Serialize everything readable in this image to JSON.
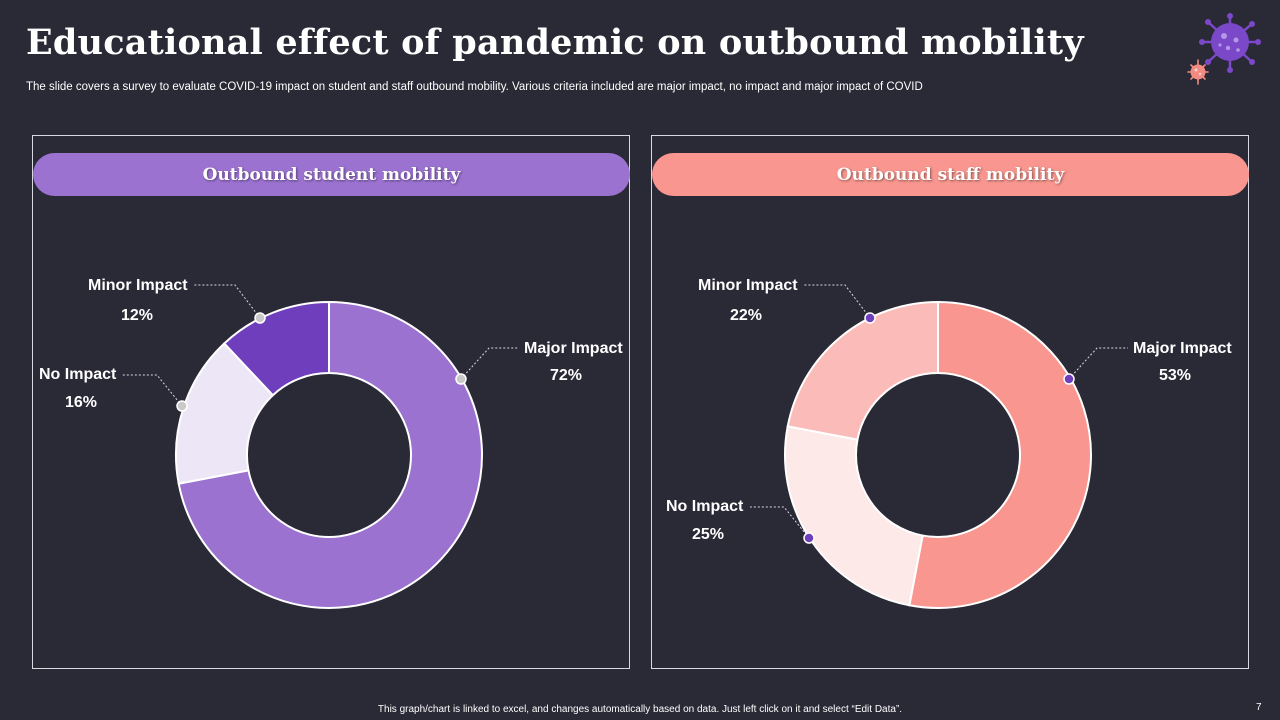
{
  "slide": {
    "title": "Educational effect of pandemic on outbound mobility",
    "subtitle": "The slide covers a survey to evaluate COVID-19 impact on student and staff outbound mobility. Various criteria included are major impact, no impact and major impact of COVID",
    "footer": "This graph/chart is linked to excel, and changes automatically based on data. Just left click on it and select “Edit Data”.",
    "page_number": "7",
    "icon": "virus-icon"
  },
  "colors": {
    "background": "#2a2936",
    "student_header": "#9b72d0",
    "staff_header": "#f8968f"
  },
  "chart_data": [
    {
      "type": "pie",
      "variant": "donut",
      "title": "Outbound student mobility",
      "categories": [
        "Major Impact",
        "No Impact",
        "Minor Impact"
      ],
      "values": [
        72,
        16,
        12
      ],
      "value_labels": [
        "72%",
        "16%",
        "12%"
      ],
      "colors": [
        "#9b72d0",
        "#ede6f6",
        "#6f3ebd"
      ],
      "marker_color": "#c9c9c9"
    },
    {
      "type": "pie",
      "variant": "donut",
      "title": "Outbound staff mobility",
      "categories": [
        "Major Impact",
        "No Impact",
        "Minor Impact"
      ],
      "values": [
        53,
        25,
        22
      ],
      "value_labels": [
        "53%",
        "25%",
        "22%"
      ],
      "colors": [
        "#f8968f",
        "#fde9e7",
        "#fbbcb9"
      ],
      "marker_color": "#6f3ebd"
    }
  ]
}
